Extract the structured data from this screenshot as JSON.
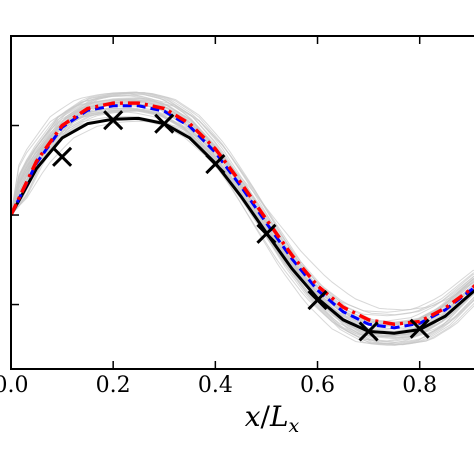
{
  "chart_data": {
    "type": "line",
    "title": "",
    "xlabel": "x/Lx",
    "xlabel_parts": {
      "x": "x",
      "slash": "/",
      "L": "L",
      "sub": "x"
    },
    "ylabel": "",
    "xlim": [
      0.0,
      0.92
    ],
    "ylim": [
      -1.72,
      2.0
    ],
    "x_ticks": [
      0.0,
      0.2,
      0.4,
      0.6,
      0.8
    ],
    "x_tick_labels": [
      "0.0",
      "0.2",
      "0.4",
      "0.6",
      "0.8"
    ],
    "y_ticks": [
      -1.0,
      0.0,
      1.0
    ],
    "grid": false,
    "legend": "none",
    "colors": {
      "ensemble": "#c8c8c8",
      "truth": "#000000",
      "mean_red": "#ff0000",
      "mean_blue": "#0000ff"
    },
    "ensemble": {
      "count": 40
    },
    "series": [
      {
        "style": "black-solid",
        "x": [
          0.0,
          0.05,
          0.1,
          0.15,
          0.2,
          0.25,
          0.3,
          0.35,
          0.4,
          0.45,
          0.5,
          0.55,
          0.6,
          0.65,
          0.7,
          0.75,
          0.8,
          0.85,
          0.9,
          0.92
        ],
        "y": [
          0.0,
          0.52,
          0.86,
          1.02,
          1.07,
          1.08,
          1.02,
          0.86,
          0.58,
          0.21,
          -0.2,
          -0.6,
          -0.93,
          -1.17,
          -1.3,
          -1.32,
          -1.28,
          -1.13,
          -0.88,
          -0.78
        ]
      },
      {
        "style": "blue-dashed",
        "x": [
          0.0,
          0.05,
          0.1,
          0.15,
          0.2,
          0.25,
          0.3,
          0.35,
          0.4,
          0.45,
          0.5,
          0.55,
          0.6,
          0.65,
          0.7,
          0.75,
          0.8,
          0.85,
          0.9,
          0.92
        ],
        "y": [
          0.0,
          0.58,
          0.98,
          1.17,
          1.22,
          1.22,
          1.16,
          0.99,
          0.7,
          0.32,
          -0.09,
          -0.49,
          -0.84,
          -1.08,
          -1.22,
          -1.26,
          -1.21,
          -1.06,
          -0.84,
          -0.74
        ]
      },
      {
        "style": "red-dashdot",
        "x": [
          0.0,
          0.05,
          0.1,
          0.15,
          0.2,
          0.25,
          0.3,
          0.35,
          0.4,
          0.45,
          0.5,
          0.55,
          0.6,
          0.65,
          0.7,
          0.75,
          0.8,
          0.85,
          0.9,
          0.92
        ],
        "y": [
          0.0,
          0.6,
          1.0,
          1.19,
          1.25,
          1.25,
          1.19,
          1.02,
          0.74,
          0.36,
          -0.05,
          -0.45,
          -0.79,
          -1.03,
          -1.17,
          -1.22,
          -1.19,
          -1.04,
          -0.83,
          -0.73
        ]
      }
    ],
    "markers": {
      "symbol": "x",
      "x": [
        0.1,
        0.2,
        0.3,
        0.4,
        0.5,
        0.6,
        0.7,
        0.8
      ],
      "y": [
        0.65,
        1.06,
        1.02,
        0.57,
        -0.21,
        -0.95,
        -1.3,
        -1.27
      ]
    }
  }
}
